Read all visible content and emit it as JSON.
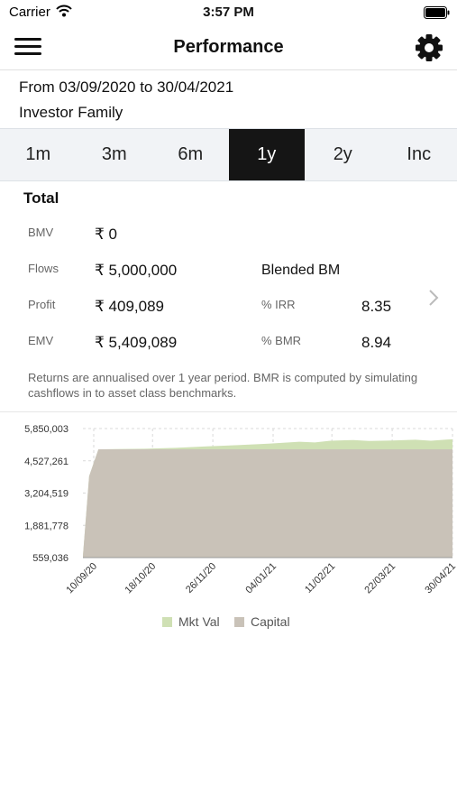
{
  "status_bar": {
    "carrier": "Carrier",
    "time": "3:57 PM"
  },
  "header": {
    "title": "Performance"
  },
  "date_range": "From 03/09/2020 to 30/04/2021",
  "investor": "Investor Family",
  "tabs": [
    {
      "label": "1m",
      "active": false
    },
    {
      "label": "3m",
      "active": false
    },
    {
      "label": "6m",
      "active": false
    },
    {
      "label": "1y",
      "active": true
    },
    {
      "label": "2y",
      "active": false
    },
    {
      "label": "Inc",
      "active": false
    }
  ],
  "summary": {
    "title": "Total",
    "rows": [
      {
        "label": "BMV",
        "value": "₹ 0"
      },
      {
        "label": "Flows",
        "value": "₹ 5,000,000"
      },
      {
        "label": "Profit",
        "value": "₹ 409,089"
      },
      {
        "label": "EMV",
        "value": "₹ 5,409,089"
      }
    ],
    "blended_label": "Blended BM",
    "irr_label": "% IRR",
    "irr_value": "8.35",
    "bmr_label": "% BMR",
    "bmr_value": "8.94",
    "note": "Returns are annualised over 1 year period. BMR is computed by simulating cashflows in to asset class benchmarks."
  },
  "colors": {
    "mkt_val": "#cfe0b4",
    "capital": "#c9c2b8",
    "active_tab": "#151515"
  },
  "chart_data": {
    "type": "area",
    "y_ticks": [
      "5,850,003",
      "4,527,261",
      "3,204,519",
      "1,881,778",
      "559,036"
    ],
    "ylim": [
      559036,
      5850003
    ],
    "x_ticks": [
      "10/09/20",
      "18/10/20",
      "26/11/20",
      "04/01/21",
      "11/02/21",
      "22/03/21",
      "30/04/21"
    ],
    "x_tick_days": [
      7,
      45,
      84,
      123,
      161,
      200,
      239
    ],
    "x_range_days": [
      0,
      239
    ],
    "grid": true,
    "legend_position": "bottom",
    "series": [
      {
        "name": "Mkt Val",
        "points": [
          [
            0,
            620000
          ],
          [
            4,
            3900000
          ],
          [
            10,
            5000000
          ],
          [
            40,
            5020000
          ],
          [
            60,
            5060000
          ],
          [
            80,
            5120000
          ],
          [
            100,
            5170000
          ],
          [
            120,
            5230000
          ],
          [
            140,
            5310000
          ],
          [
            150,
            5280000
          ],
          [
            160,
            5350000
          ],
          [
            175,
            5380000
          ],
          [
            185,
            5340000
          ],
          [
            200,
            5360000
          ],
          [
            215,
            5390000
          ],
          [
            225,
            5350000
          ],
          [
            235,
            5400000
          ],
          [
            239,
            5409089
          ]
        ]
      },
      {
        "name": "Capital",
        "points": [
          [
            0,
            620000
          ],
          [
            4,
            3900000
          ],
          [
            10,
            5000000
          ],
          [
            239,
            5000000
          ]
        ]
      }
    ]
  }
}
